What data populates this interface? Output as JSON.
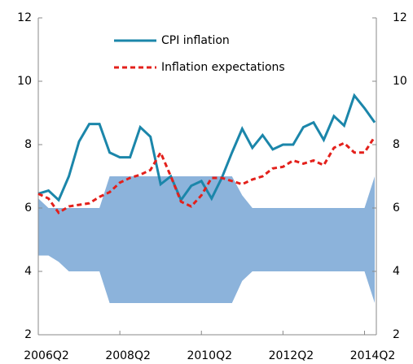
{
  "chart_data": {
    "type": "line",
    "categories": [
      "2006Q2",
      null,
      null,
      null,
      null,
      null,
      null,
      null,
      "2008Q2",
      null,
      null,
      null,
      null,
      null,
      null,
      null,
      "2010Q2",
      null,
      null,
      null,
      null,
      null,
      null,
      null,
      "2012Q2",
      null,
      null,
      null,
      null,
      null,
      null,
      null,
      "2014Q2",
      null
    ],
    "series": [
      {
        "name": "CPI inflation",
        "color": "#1b86aa",
        "dash": "none",
        "values": [
          6.45,
          6.55,
          6.25,
          7.0,
          8.1,
          8.65,
          8.65,
          7.75,
          7.6,
          7.6,
          8.55,
          8.25,
          6.75,
          7.0,
          6.25,
          6.7,
          6.85,
          6.3,
          6.95,
          7.75,
          8.5,
          7.9,
          8.3,
          7.85,
          8.0,
          8.0,
          8.55,
          8.7,
          8.15,
          8.9,
          8.6,
          9.55,
          9.15,
          8.7
        ]
      },
      {
        "name": "Inflation expectations",
        "color": "#e3201b",
        "dash": "6 4",
        "values": [
          6.45,
          6.3,
          5.85,
          6.05,
          6.1,
          6.15,
          6.35,
          6.5,
          6.8,
          6.95,
          7.05,
          7.2,
          7.75,
          7.0,
          6.2,
          6.05,
          6.4,
          6.95,
          6.95,
          6.85,
          6.75,
          6.9,
          7.0,
          7.25,
          7.3,
          7.5,
          7.4,
          7.5,
          7.35,
          7.9,
          8.05,
          7.75,
          7.75,
          8.25
        ]
      }
    ],
    "band": {
      "color": "#8cb3db",
      "upper": [
        6.3,
        6.0,
        6.0,
        6.0,
        6.0,
        6.0,
        6.0,
        7.0,
        7.0,
        7.0,
        7.0,
        7.0,
        7.0,
        7.0,
        7.0,
        7.0,
        7.0,
        7.0,
        7.0,
        7.0,
        6.4,
        6.0,
        6.0,
        6.0,
        6.0,
        6.0,
        6.0,
        6.0,
        6.0,
        6.0,
        6.0,
        6.0,
        6.0,
        7.0
      ],
      "lower": [
        4.5,
        4.5,
        4.3,
        4.0,
        4.0,
        4.0,
        4.0,
        3.0,
        3.0,
        3.0,
        3.0,
        3.0,
        3.0,
        3.0,
        3.0,
        3.0,
        3.0,
        3.0,
        3.0,
        3.0,
        3.7,
        4.0,
        4.0,
        4.0,
        4.0,
        4.0,
        4.0,
        4.0,
        4.0,
        4.0,
        4.0,
        4.0,
        4.0,
        3.0
      ]
    },
    "ylim": [
      2,
      12
    ],
    "yticks": [
      2,
      4,
      6,
      8,
      10,
      12
    ],
    "y2lim": [
      2,
      12
    ],
    "y2ticks": [
      2,
      4,
      6,
      8,
      10,
      12
    ],
    "legend": "top"
  }
}
